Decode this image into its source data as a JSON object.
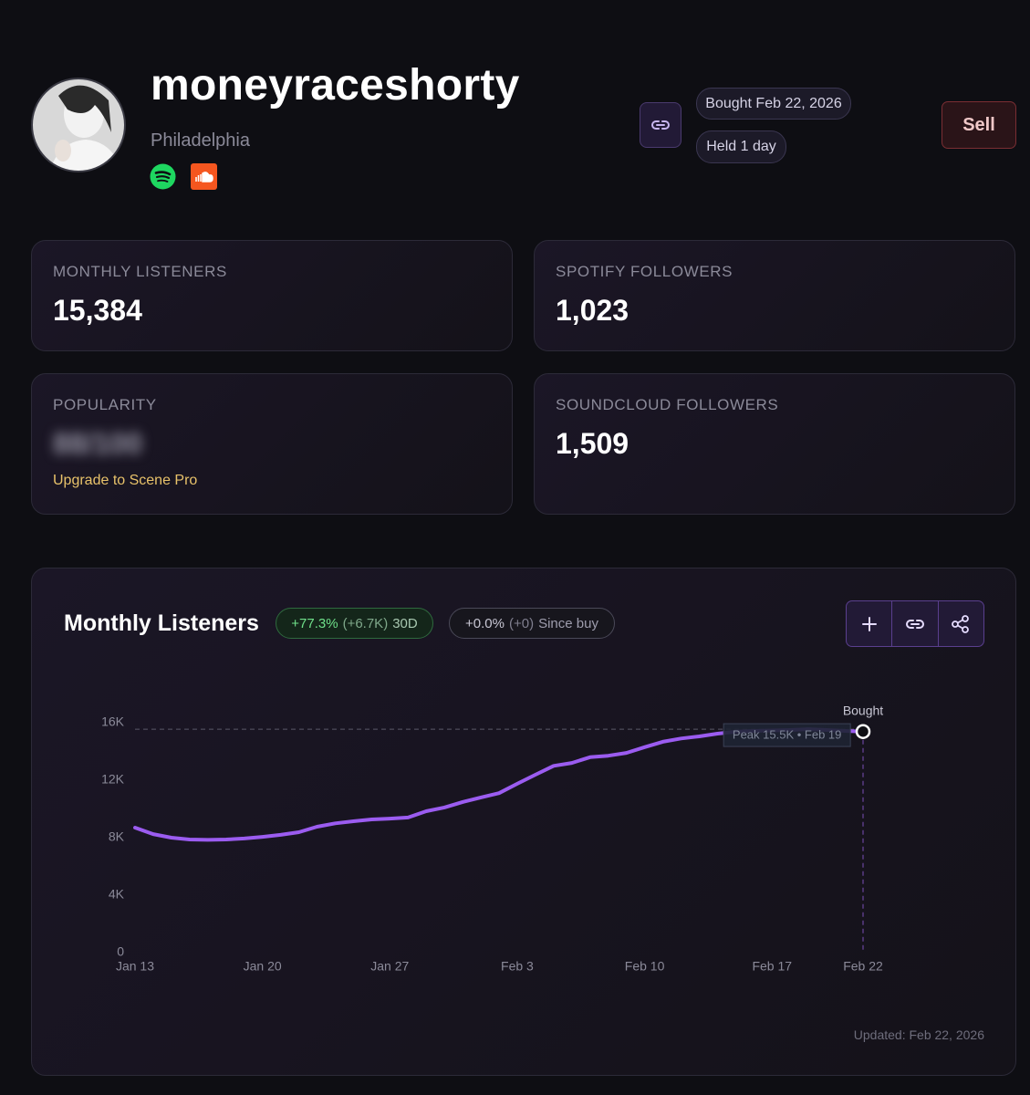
{
  "profile": {
    "name": "moneyraceshorty",
    "location": "Philadelphia",
    "bought": "Bought Feb 22, 2026",
    "held": "Held 1 day",
    "sell": "Sell"
  },
  "stats": [
    {
      "label": "MONTHLY LISTENERS",
      "value": "15,384"
    },
    {
      "label": "SPOTIFY FOLLOWERS",
      "value": "1,023"
    },
    {
      "label": "POPULARITY",
      "value": "88/100",
      "note": "Upgrade to Scene Pro"
    },
    {
      "label": "SOUNDCLOUD FOLLOWERS",
      "value": "1,509"
    }
  ],
  "chart_data": {
    "type": "line",
    "title": "Monthly Listeners",
    "badges": [
      {
        "change": "+77.3%",
        "delta": "(+6.7K)",
        "period": "30D"
      },
      {
        "change": "+0.0%",
        "delta": "(+0)",
        "period": "Since buy"
      }
    ],
    "categories": [
      "Jan 13",
      null,
      null,
      null,
      null,
      null,
      null,
      "Jan 20",
      null,
      null,
      null,
      null,
      null,
      null,
      "Jan 27",
      null,
      null,
      null,
      null,
      null,
      null,
      "Feb 3",
      null,
      null,
      null,
      null,
      null,
      null,
      "Feb 10",
      null,
      null,
      null,
      null,
      null,
      null,
      "Feb 17",
      null,
      null,
      null,
      null,
      "Feb 22"
    ],
    "values": [
      8700,
      8250,
      8000,
      7870,
      7850,
      7870,
      7940,
      8060,
      8200,
      8380,
      8760,
      9000,
      9140,
      9270,
      9330,
      9400,
      9840,
      10100,
      10480,
      10800,
      11100,
      11750,
      12380,
      13000,
      13200,
      13600,
      13700,
      13900,
      14300,
      14670,
      14900,
      15050,
      15240,
      15370,
      15430,
      15460,
      15490,
      15550,
      15490,
      15430,
      15384
    ],
    "color": "#9b5cf0",
    "ylim": [
      0,
      16000
    ],
    "yticks": [
      0,
      {
        "value": 4000,
        "label": "4K"
      },
      {
        "value": 8000,
        "label": "8K"
      },
      {
        "value": 12000,
        "label": "12K"
      },
      {
        "value": 16000,
        "label": "16K"
      }
    ],
    "grid": false,
    "bought_label": "Bought",
    "peak_label": "Peak 15.5K • Feb 19",
    "updated": "Updated: Feb 22, 2026"
  }
}
